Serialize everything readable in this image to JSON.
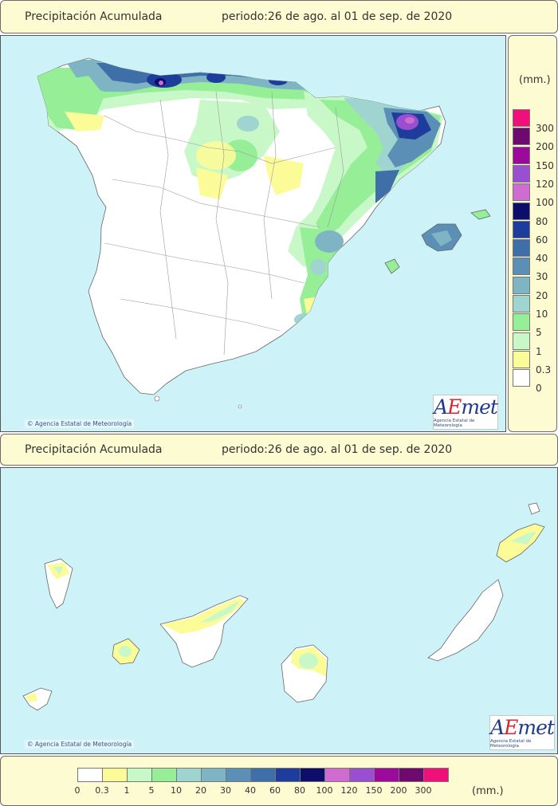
{
  "header": {
    "title": "Precipitación Acumulada",
    "period": "periodo:26 de ago. al 01 de sep. de 2020"
  },
  "footer_header": {
    "title": "Precipitación Acumulada",
    "period": "periodo:26 de ago. al 01 de sep. de 2020"
  },
  "map": {
    "copyright": "Agencia Estatal de Meteorología",
    "logo_text": "AEmet",
    "logo_sub": "Agencia Estatal de Meteorología",
    "sea_color": "#cdf3f8"
  },
  "legend": {
    "unit": "(mm.)",
    "unit_bottom": "(mm.)",
    "classes": [
      {
        "value": "0",
        "color": "#ffffff"
      },
      {
        "value": "0.3",
        "color": "#fbfb98"
      },
      {
        "value": "1",
        "color": "#c8f8c8"
      },
      {
        "value": "5",
        "color": "#96ef96"
      },
      {
        "value": "10",
        "color": "#9fd4d0"
      },
      {
        "value": "20",
        "color": "#7fb4c4"
      },
      {
        "value": "30",
        "color": "#5c8fb6"
      },
      {
        "value": "40",
        "color": "#3f6fa8"
      },
      {
        "value": "60",
        "color": "#1e3c9c"
      },
      {
        "value": "80",
        "color": "#0d0d6b"
      },
      {
        "value": "100",
        "color": "#cf6ccf"
      },
      {
        "value": "120",
        "color": "#9a4ed0"
      },
      {
        "value": "150",
        "color": "#9b0a9b"
      },
      {
        "value": "200",
        "color": "#6e0a6e"
      },
      {
        "value": "300",
        "color": "#f0107a"
      }
    ]
  }
}
